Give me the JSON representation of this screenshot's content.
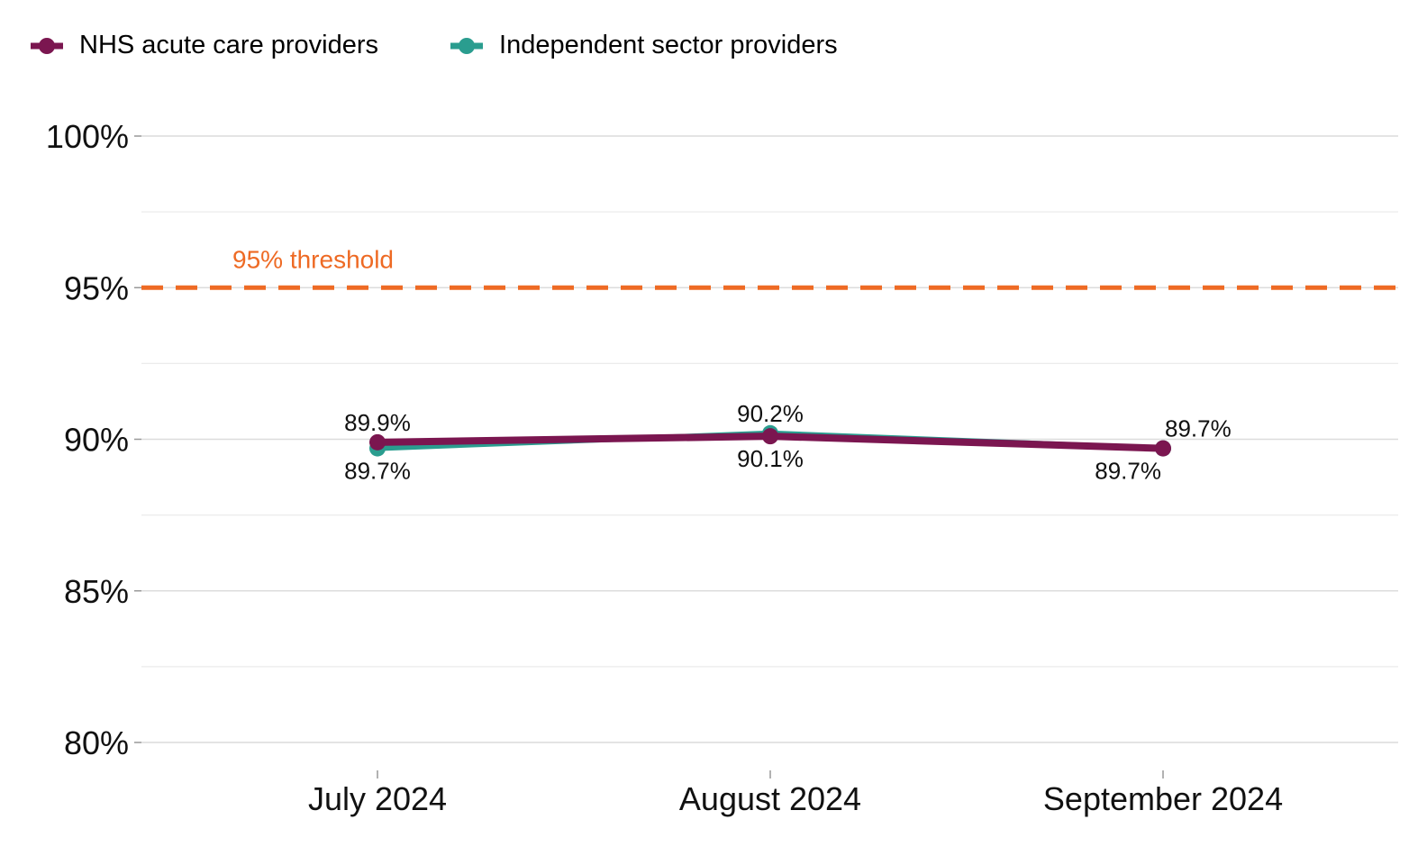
{
  "legend": {
    "items": [
      {
        "label": "NHS acute care providers",
        "color": "#7B1650"
      },
      {
        "label": "Independent sector providers",
        "color": "#2A9D8F"
      }
    ]
  },
  "chart_data": {
    "type": "line",
    "categories": [
      "July 2024",
      "August 2024",
      "September 2024"
    ],
    "series": [
      {
        "name": "NHS acute care providers",
        "color": "#7B1650",
        "values": [
          89.9,
          90.1,
          89.7
        ],
        "labels": [
          "89.9%",
          "90.1%",
          "89.7%"
        ]
      },
      {
        "name": "Independent sector providers",
        "color": "#2A9D8F",
        "values": [
          89.7,
          90.2,
          89.7
        ],
        "labels": [
          "89.7%",
          "90.2%",
          "89.7%"
        ]
      }
    ],
    "ylim": [
      80,
      100
    ],
    "yticks": [
      80,
      85,
      90,
      95,
      100
    ],
    "ytick_labels": [
      "80%",
      "85%",
      "90%",
      "95%",
      "100%"
    ],
    "grid": true,
    "legend_position": "top-left",
    "reference_line": {
      "value": 95,
      "label": "95% threshold",
      "color": "#EE6A24",
      "style": "dashed"
    },
    "title": "",
    "xlabel": "",
    "ylabel": ""
  }
}
